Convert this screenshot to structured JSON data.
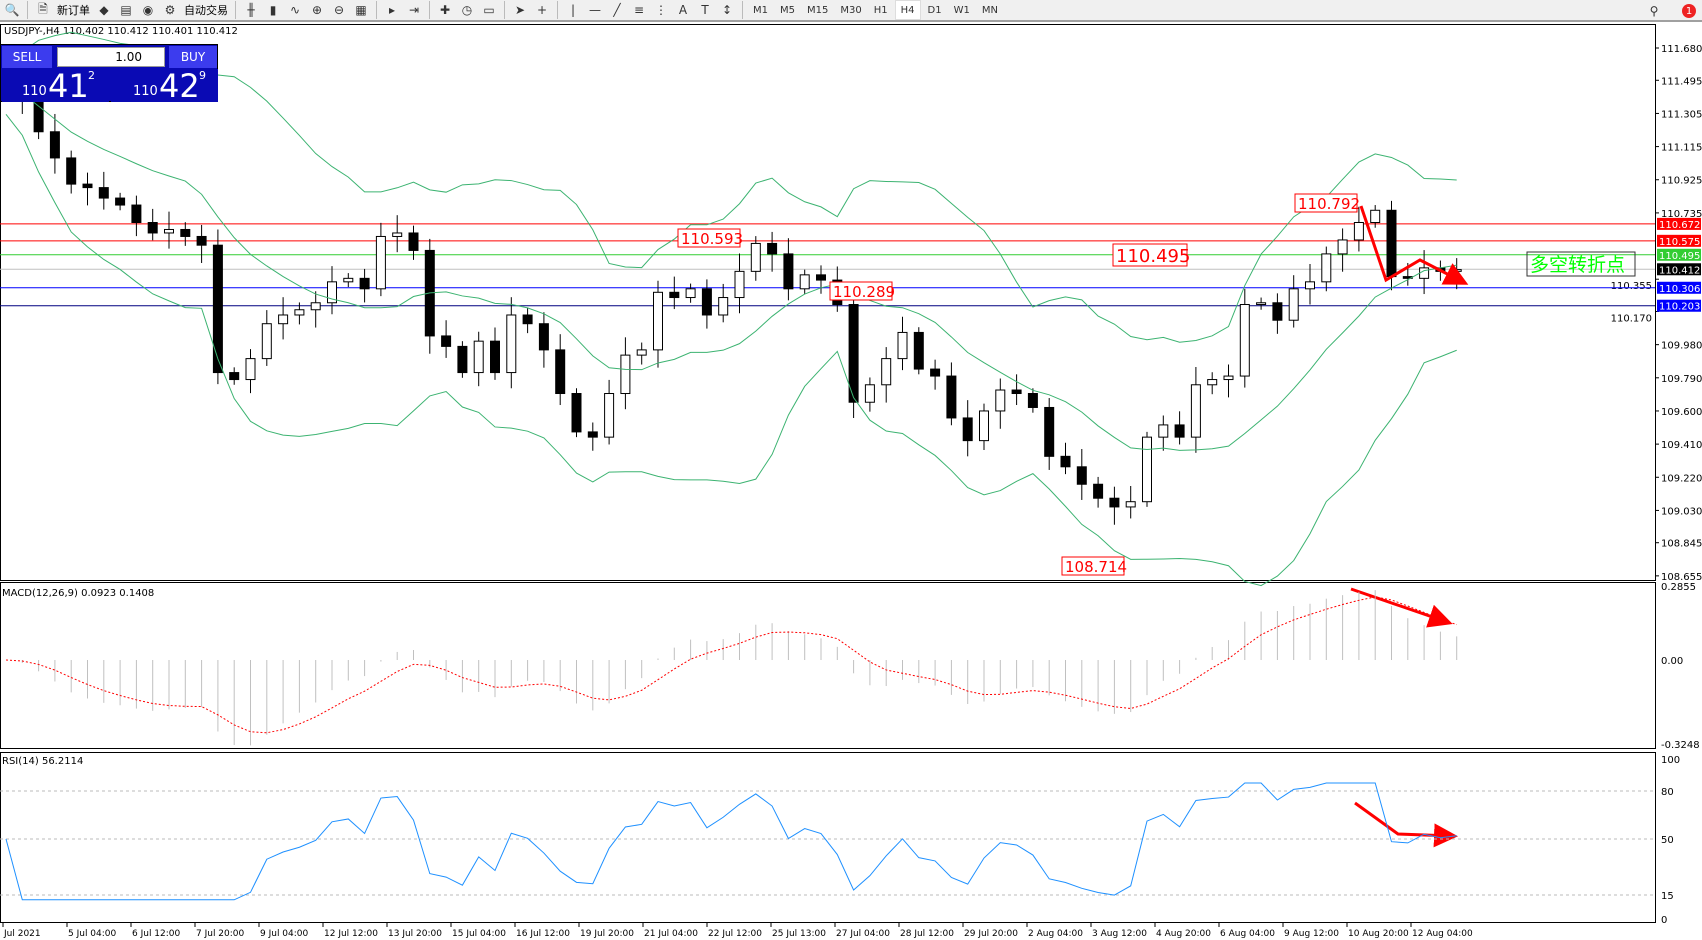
{
  "toolbar": {
    "new_order": "新订单",
    "auto_trading": "自动交易",
    "icons": [
      "new-order-icon",
      "history-icon",
      "market-watch-icon",
      "signals-icon",
      "auto-trading-icon",
      "bar-chart-icon",
      "candlestick-icon",
      "line-chart-icon",
      "zoom-in-icon",
      "zoom-out-icon",
      "tile-windows-icon",
      "auto-scroll-icon",
      "chart-shift-icon",
      "indicators-icon",
      "periods-icon",
      "templates-icon",
      "cursor-icon",
      "crosshair-icon",
      "vertical-line-icon",
      "horizontal-line-icon",
      "trendline-icon",
      "fibonacci-icon",
      "fibo-fan-icon",
      "text-icon",
      "text-label-icon",
      "arrows-icon"
    ],
    "timeframes": [
      "M1",
      "M5",
      "M15",
      "M30",
      "H1",
      "H4",
      "D1",
      "W1",
      "MN"
    ],
    "active_timeframe": "H4",
    "notifications": "1"
  },
  "chart": {
    "header": "USDJPY-,H4  110.402 110.412 110.401 110.412",
    "trade_panel": {
      "sell": "SELL",
      "buy": "BUY",
      "lot": "1.00",
      "sell_price": {
        "big": "110",
        "mid": "41",
        "sup": "2"
      },
      "buy_price": {
        "big": "110",
        "mid": "42",
        "sup": "9"
      }
    },
    "price_axis": [
      "111.680",
      "111.495",
      "111.305",
      "111.115",
      "110.925",
      "110.735",
      "110.355",
      "110.170",
      "109.980",
      "109.790",
      "109.600",
      "109.410",
      "109.220",
      "109.030",
      "108.845",
      "108.655"
    ],
    "levels": [
      {
        "price": 110.672,
        "label": "110.672",
        "color": "#ff0000"
      },
      {
        "price": 110.575,
        "label": "110.575",
        "color": "#ff0000"
      },
      {
        "price": 110.495,
        "label": "110.495",
        "color": "#32cd32"
      },
      {
        "price": 110.412,
        "label": "110.412",
        "color": "#000000",
        "line": "#c0c0c0"
      },
      {
        "price": 110.306,
        "label": "110.306",
        "color": "#0000ff"
      },
      {
        "price": 110.203,
        "label": "110.203",
        "color": "#0000ff",
        "line": "#000080"
      }
    ],
    "annotations": [
      "110.792",
      "110.593",
      "110.495",
      "110.289",
      "108.714"
    ],
    "note": "多空转折点",
    "time_axis": [
      "Jul 2021",
      "5 Jul 04:00",
      "6 Jul 12:00",
      "7 Jul 20:00",
      "9 Jul 04:00",
      "12 Jul 12:00",
      "13 Jul 20:00",
      "15 Jul 04:00",
      "16 Jul 12:00",
      "19 Jul 20:00",
      "21 Jul 04:00",
      "22 Jul 12:00",
      "25 Jul 13:00",
      "27 Jul 04:00",
      "28 Jul 12:00",
      "29 Jul 20:00",
      "2 Aug 04:00",
      "3 Aug 12:00",
      "4 Aug 20:00",
      "6 Aug 04:00",
      "9 Aug 12:00",
      "10 Aug 20:00",
      "12 Aug 04:00"
    ],
    "closes": [
      111.46,
      111.38,
      111.2,
      111.05,
      110.9,
      110.88,
      110.82,
      110.78,
      110.68,
      110.62,
      110.64,
      110.6,
      110.55,
      109.82,
      109.78,
      109.9,
      110.1,
      110.15,
      110.18,
      110.22,
      110.34,
      110.36,
      110.3,
      110.6,
      110.62,
      110.52,
      110.03,
      109.97,
      109.82,
      110.0,
      109.82,
      110.15,
      110.1,
      109.95,
      109.7,
      109.48,
      109.45,
      109.7,
      109.92,
      109.95,
      110.28,
      110.25,
      110.3,
      110.15,
      110.25,
      110.4,
      110.56,
      110.5,
      110.3,
      110.38,
      110.35,
      110.21,
      109.65,
      109.75,
      109.9,
      110.05,
      109.84,
      109.8,
      109.56,
      109.43,
      109.6,
      109.72,
      109.7,
      109.62,
      109.34,
      109.28,
      109.18,
      109.1,
      109.05,
      109.08,
      109.45,
      109.52,
      109.45,
      109.75,
      109.78,
      109.8,
      110.21,
      110.22,
      110.12,
      110.3,
      110.34,
      110.5,
      110.58,
      110.68,
      110.75,
      110.37,
      110.36,
      110.42,
      110.4,
      110.41
    ],
    "colors": {
      "bull": "#ffffff",
      "bear": "#000000",
      "bands": "#3cb371",
      "annotation": "#ff0000",
      "arrows": "#ff0000"
    }
  },
  "macd": {
    "label": "MACD(12,26,9) 0.0923 0.1408",
    "axis": [
      "0.2855",
      "0.00",
      "-0.3248"
    ],
    "histogram_color": "#c0c0c0",
    "signal_color": "#ff0000"
  },
  "rsi": {
    "label": "RSI(14) 56.2114",
    "axis": [
      "100",
      "80",
      "50",
      "15",
      "0"
    ],
    "line_color": "#1e90ff"
  }
}
